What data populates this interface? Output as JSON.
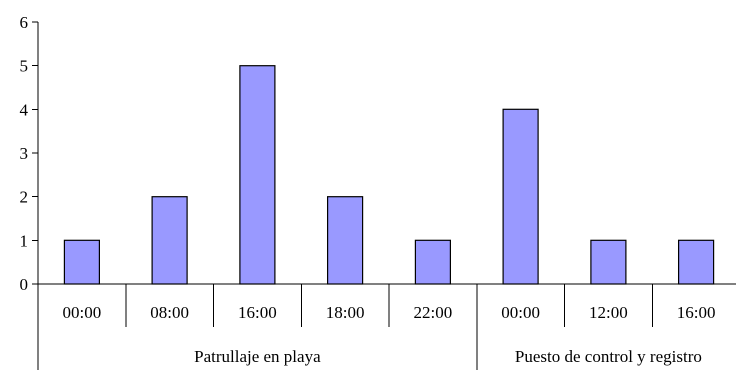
{
  "chart_data": {
    "type": "bar",
    "ylim": [
      0,
      6
    ],
    "y_ticks": [
      0,
      1,
      2,
      3,
      4,
      5,
      6
    ],
    "grid": false,
    "legend": "none",
    "bar_color": "#9999ff",
    "categories": [
      "00:00",
      "08:00",
      "16:00",
      "18:00",
      "22:00",
      "00:00",
      "12:00",
      "16:00"
    ],
    "values": [
      1,
      2,
      5,
      2,
      1,
      4,
      1,
      1
    ],
    "groups": [
      {
        "label": "Patrullaje en playa",
        "count": 5
      },
      {
        "label": "Puesto de control y registro",
        "count": 3
      }
    ]
  }
}
